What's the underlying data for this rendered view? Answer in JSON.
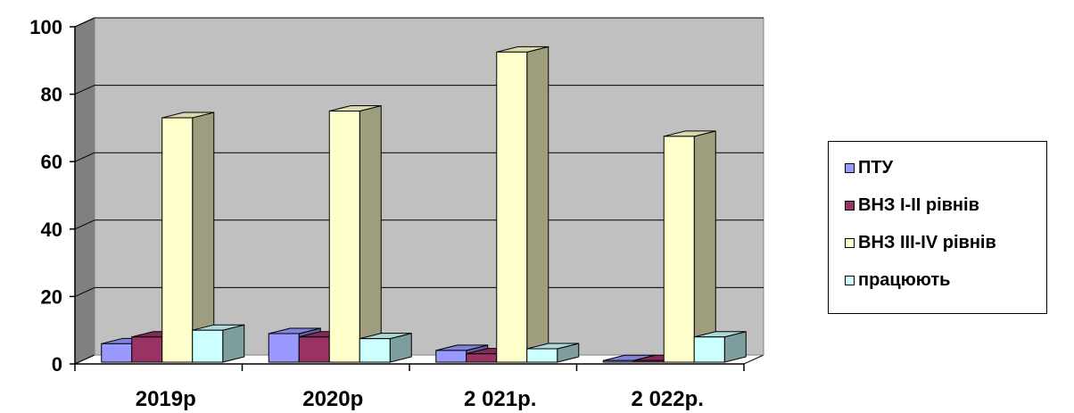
{
  "chart_data": {
    "type": "bar",
    "title": "",
    "xlabel": "",
    "ylabel": "",
    "ylim": [
      0,
      100
    ],
    "yticks": [
      "0",
      "20",
      "40",
      "60",
      "80",
      "100"
    ],
    "categories": [
      "2019р",
      "2020р",
      "2 021р.",
      "2 022р."
    ],
    "series": [
      {
        "name": "ПТУ",
        "values": [
          6,
          9,
          4,
          1
        ],
        "color": "#9999FF"
      },
      {
        "name": "ВНЗ І-ІІ рівнів",
        "values": [
          8,
          8,
          3,
          1
        ],
        "color": "#993366"
      },
      {
        "name": "ВНЗ ІІІ-ІV рівнів",
        "values": [
          73,
          75,
          92.5,
          67.5
        ],
        "color": "#FFFFCC"
      },
      {
        "name": "працюють",
        "values": [
          10,
          7.5,
          4.5,
          8
        ],
        "color": "#CCFFFF"
      }
    ],
    "grid": true,
    "legend_position": "right",
    "style": "3d-column"
  }
}
